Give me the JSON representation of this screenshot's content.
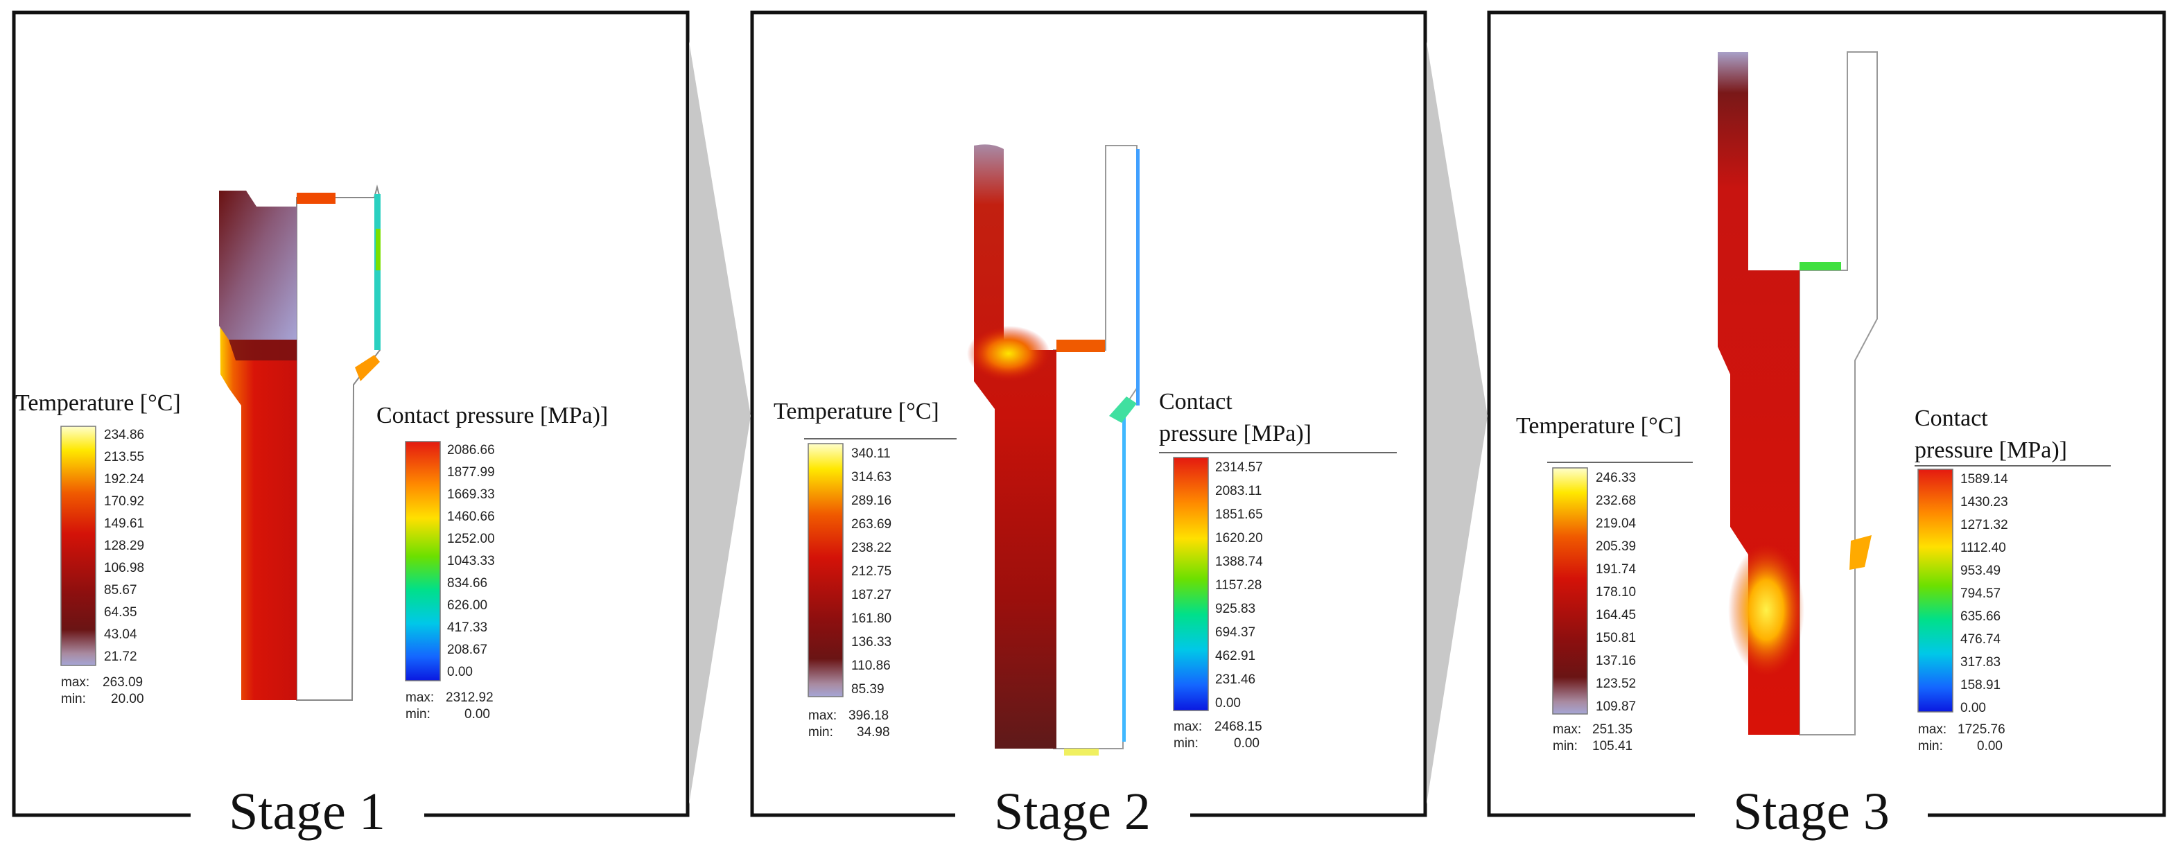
{
  "figure": {
    "stages": [
      {
        "title": "Stage 1",
        "temperature": {
          "label": "Temperature [°C]",
          "ticks": [
            "234.86",
            "213.55",
            "192.24",
            "170.92",
            "149.61",
            "128.29",
            "106.98",
            "85.67",
            "64.35",
            "43.04",
            "21.72"
          ],
          "max_label": "max:",
          "max": "263.09",
          "min_label": "min:",
          "min": "20.00"
        },
        "pressure": {
          "label": "Contact pressure [MPa)]",
          "ticks": [
            "2086.66",
            "1877.99",
            "1669.33",
            "1460.66",
            "1252.00",
            "1043.33",
            "834.66",
            "626.00",
            "417.33",
            "208.67",
            "0.00"
          ],
          "max_label": "max:",
          "max": "2312.92",
          "min_label": "min:",
          "min": "0.00"
        }
      },
      {
        "title": "Stage 2",
        "temperature": {
          "label": "Temperature [°C]",
          "ticks": [
            "340.11",
            "314.63",
            "289.16",
            "263.69",
            "238.22",
            "212.75",
            "187.27",
            "161.80",
            "136.33",
            "110.86",
            "85.39"
          ],
          "max_label": "max:",
          "max": "396.18",
          "min_label": "min:",
          "min": "34.98"
        },
        "pressure": {
          "label_line1": "Contact",
          "label_line2": "pressure [MPa)]",
          "ticks": [
            "2314.57",
            "2083.11",
            "1851.65",
            "1620.20",
            "1388.74",
            "1157.28",
            "925.83",
            "694.37",
            "462.91",
            "231.46",
            "0.00"
          ],
          "max_label": "max:",
          "max": "2468.15",
          "min_label": "min:",
          "min": "0.00"
        }
      },
      {
        "title": "Stage 3",
        "temperature": {
          "label": "Temperature [°C]",
          "ticks": [
            "246.33",
            "232.68",
            "219.04",
            "205.39",
            "191.74",
            "178.10",
            "164.45",
            "150.81",
            "137.16",
            "123.52",
            "109.87"
          ],
          "max_label": "max:",
          "max": "251.35",
          "min_label": "min:",
          "min": "105.41"
        },
        "pressure": {
          "label_line1": "Contact",
          "label_line2": "pressure [MPa)]",
          "ticks": [
            "1589.14",
            "1430.23",
            "1271.32",
            "1112.40",
            "953.49",
            "794.57",
            "635.66",
            "476.74",
            "317.83",
            "158.91",
            "0.00"
          ],
          "max_label": "max:",
          "max": "1725.76",
          "min_label": "min:",
          "min": "0.00"
        }
      }
    ]
  },
  "colors": {
    "panel_border": "#111111",
    "arrow_fill": "#c8c8c8",
    "hot_red": "#d8120a",
    "dark_red": "#7a0f0f"
  }
}
